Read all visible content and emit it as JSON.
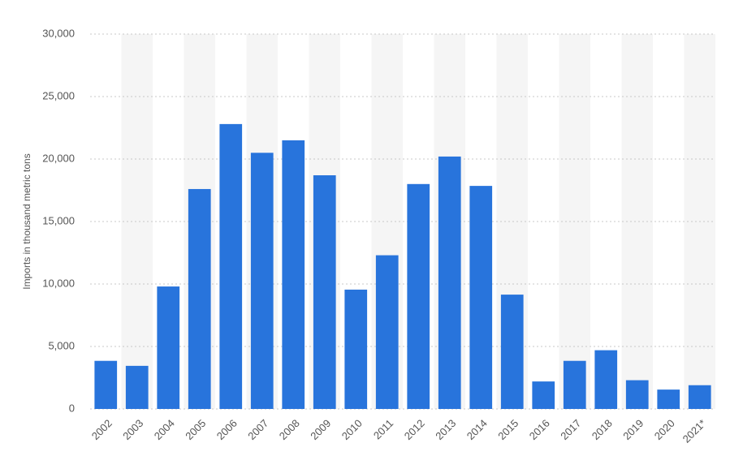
{
  "chart_data": {
    "type": "bar",
    "y_label": "Imports in thousand metric tons",
    "categories": [
      "2002",
      "2003",
      "2004",
      "2005",
      "2006",
      "2007",
      "2008",
      "2009",
      "2010",
      "2011",
      "2012",
      "2013",
      "2014",
      "2015",
      "2016",
      "2017",
      "2018",
      "2019",
      "2020",
      "2021*"
    ],
    "values": [
      3850,
      3450,
      9800,
      17600,
      22800,
      20500,
      21500,
      18700,
      9550,
      12300,
      18000,
      20200,
      17850,
      9150,
      2200,
      3850,
      4700,
      2300,
      1550,
      1900
    ],
    "color": "#2874dc",
    "ylim": [
      0,
      30000
    ],
    "yticks": [
      0,
      {
        "value": 5000,
        "label": "5,000"
      },
      {
        "value": 10000,
        "label": "10,000"
      },
      {
        "value": 15000,
        "label": "15,000"
      },
      {
        "value": 20000,
        "label": "20,000"
      },
      {
        "value": 25000,
        "label": "25,000"
      },
      {
        "value": 30000,
        "label": "30,000"
      }
    ],
    "grid": true
  }
}
